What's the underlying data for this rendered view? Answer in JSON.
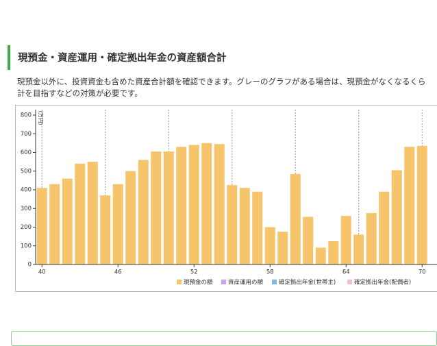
{
  "header": {
    "title": "現預金・資産運用・確定拠出年金の資産額合計"
  },
  "description": [
    "現預金以外に、投資資金も含めた資産合計額を確認できます。グレーのグラフがある場合は、現預金がなくなるくら",
    "計を目指すなどの対策が必要です。"
  ],
  "chart_data": {
    "type": "bar",
    "y_label": "(万円)",
    "x": [
      40,
      41,
      42,
      43,
      44,
      45,
      46,
      47,
      48,
      49,
      50,
      51,
      52,
      53,
      54,
      55,
      56,
      57,
      58,
      59,
      60,
      61,
      62,
      63,
      64,
      65,
      66,
      67,
      68,
      69,
      70
    ],
    "series": [
      {
        "name": "現預金の額",
        "color": "#f5c46b",
        "values": [
          410,
          430,
          460,
          540,
          550,
          370,
          430,
          500,
          560,
          605,
          605,
          630,
          640,
          650,
          645,
          425,
          410,
          390,
          200,
          175,
          485,
          255,
          90,
          125,
          260,
          160,
          275,
          390,
          505,
          630,
          635
        ]
      },
      {
        "name": "資産運用の額",
        "color": "#c9a3f2"
      },
      {
        "name": "確定拠出年金(世帯主)",
        "color": "#7fb9ea"
      },
      {
        "name": "確定拠出年金(配偶者)",
        "color": "#f5c2c4"
      }
    ],
    "xlim": [
      39.5,
      71
    ],
    "xticks": [
      40,
      46,
      52,
      58,
      64,
      70
    ],
    "ylim": [
      0,
      800
    ],
    "yticks": [
      0,
      100,
      200,
      300,
      400,
      500,
      600,
      700,
      800
    ],
    "vlines": [
      40,
      45,
      50,
      55,
      60,
      65,
      70
    ]
  }
}
